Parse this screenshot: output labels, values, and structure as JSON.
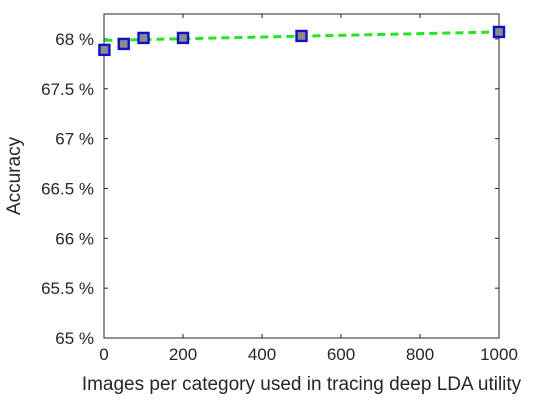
{
  "chart_data": {
    "type": "line",
    "xlabel": "Images per category used in tracing deep LDA utility",
    "ylabel": "Accuracy",
    "xlim": [
      0,
      1000
    ],
    "ylim": [
      65,
      68.25
    ],
    "x_ticks": [
      {
        "value": 0,
        "label": "0"
      },
      {
        "value": 200,
        "label": "200"
      },
      {
        "value": 400,
        "label": "400"
      },
      {
        "value": 600,
        "label": "600"
      },
      {
        "value": 800,
        "label": "800"
      },
      {
        "value": 1000,
        "label": "1000"
      }
    ],
    "y_ticks": [
      {
        "value": 65,
        "label": "65 %"
      },
      {
        "value": 65.5,
        "label": "65.5 %"
      },
      {
        "value": 66,
        "label": "66 %"
      },
      {
        "value": 66.5,
        "label": "66.5 %"
      },
      {
        "value": 67,
        "label": "67 %"
      },
      {
        "value": 67.5,
        "label": "67.5 %"
      },
      {
        "value": 68,
        "label": "68 %"
      }
    ],
    "grid": false,
    "box": true,
    "series": [
      {
        "x": [
          1,
          50,
          100,
          200,
          500,
          1000
        ],
        "y": [
          67.89,
          67.95,
          68.01,
          68.01,
          68.03,
          68.07
        ],
        "marker": "square",
        "marker_fill": "#8c8c8c",
        "marker_edge": "#1010c8",
        "points_connected": false
      }
    ],
    "trend_line": {
      "style": "dashed",
      "color": "#22e622",
      "x": [
        1,
        1000
      ],
      "y": [
        67.985,
        68.07
      ]
    }
  }
}
